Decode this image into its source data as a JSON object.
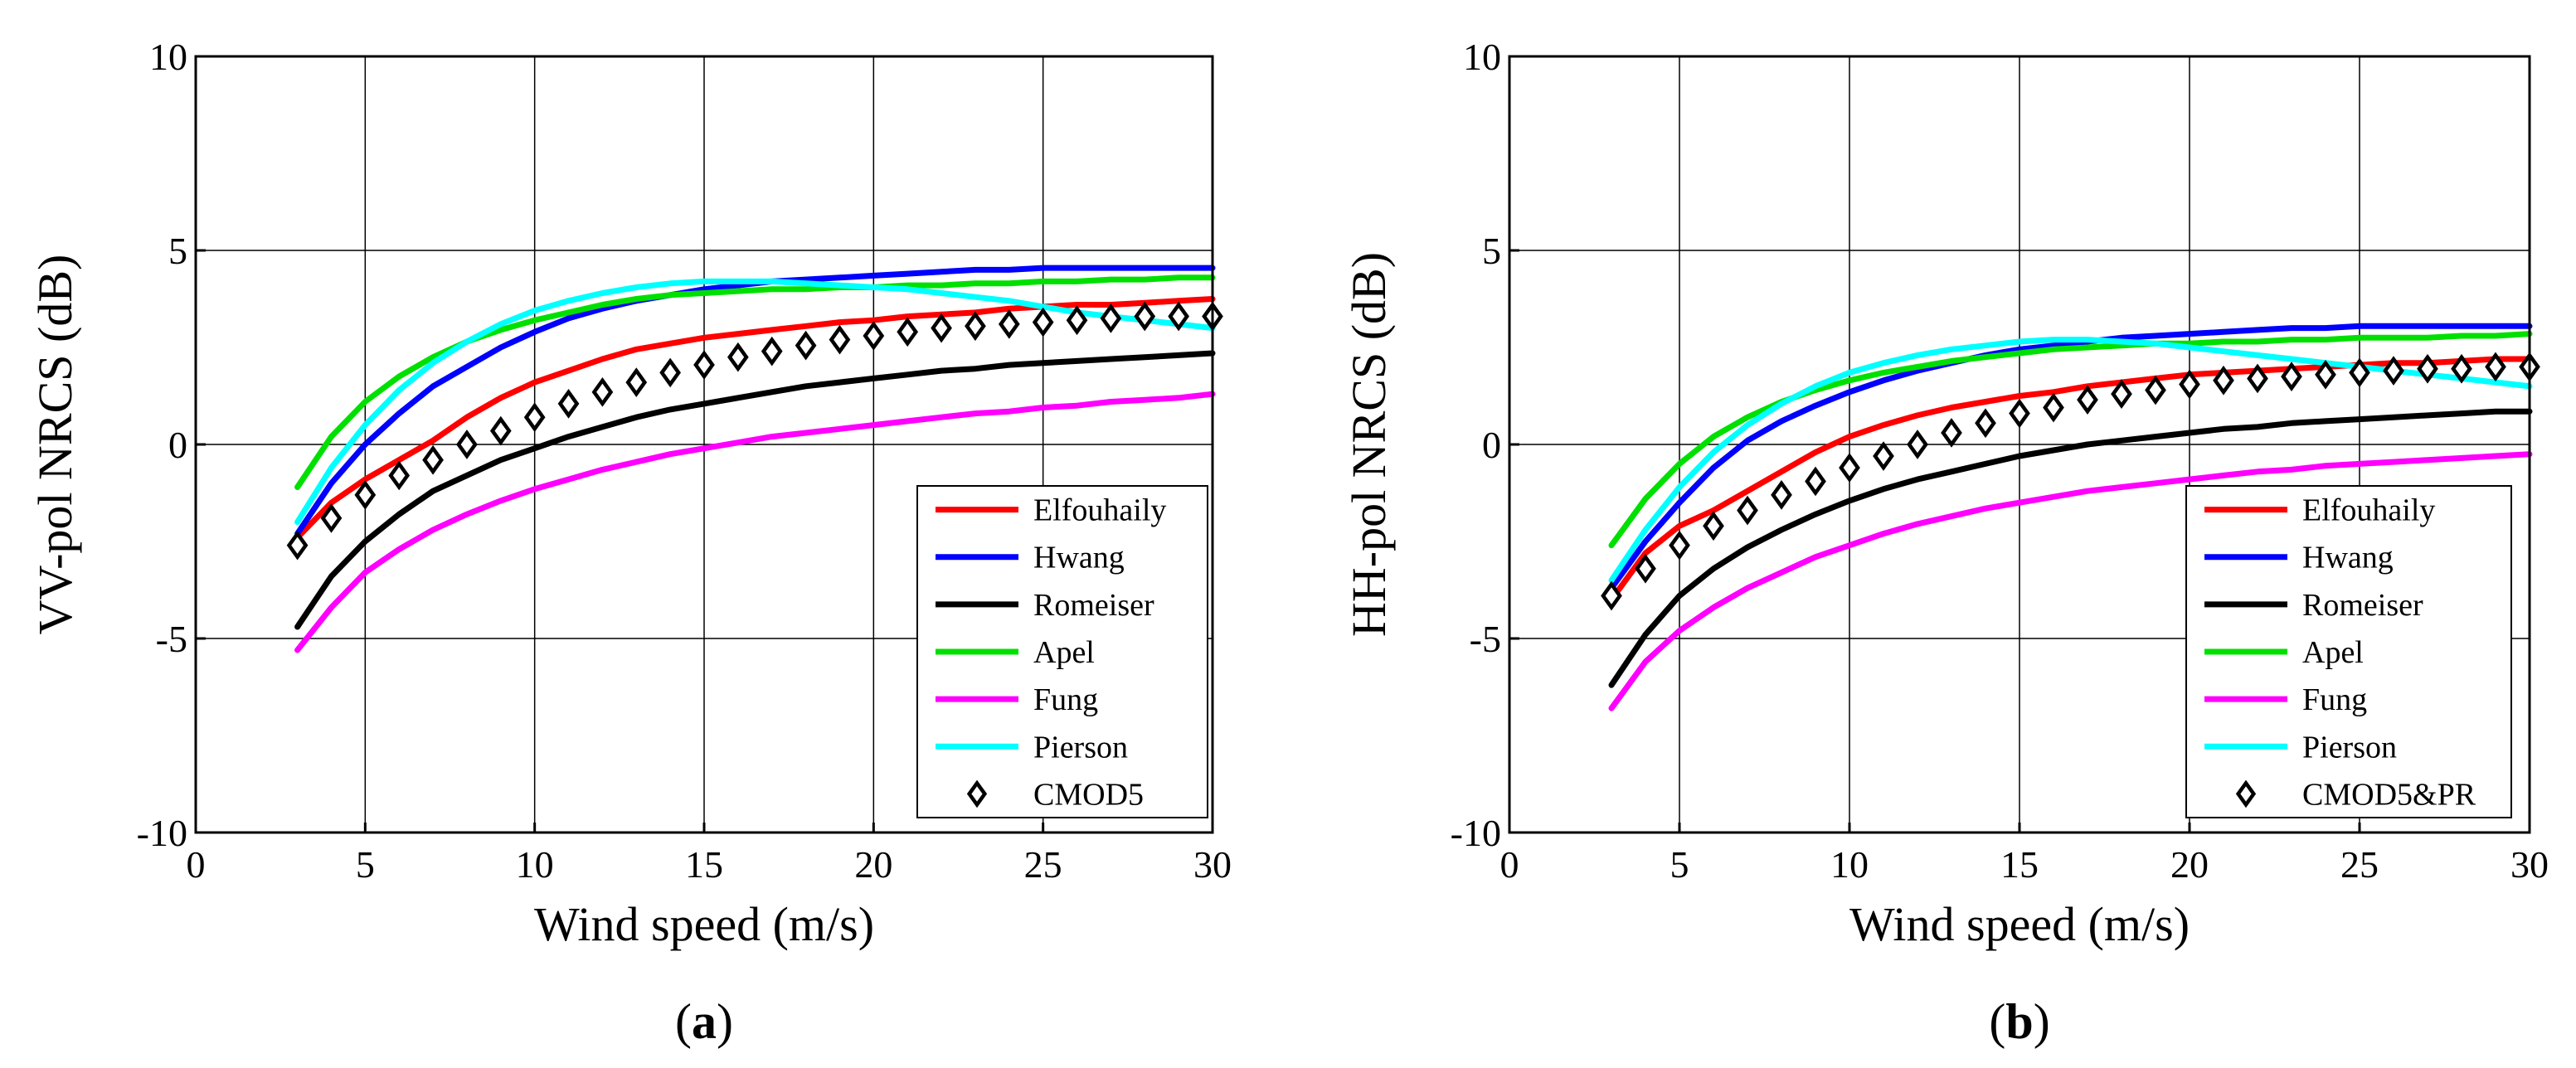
{
  "chart_data": [
    {
      "type": "line",
      "panel_label": "a",
      "xlabel": "Wind speed (m/s)",
      "ylabel": "VV-pol NRCS (dB)",
      "xlim": [
        0,
        30
      ],
      "ylim": [
        -10,
        10
      ],
      "xticks": [
        "0",
        "5",
        "10",
        "15",
        "20",
        "25",
        "30"
      ],
      "yticks": [
        "10",
        "5",
        "0",
        "-5",
        "-10"
      ],
      "grid": true,
      "legend_position": "bottom-right",
      "x": [
        3,
        4,
        5,
        6,
        7,
        8,
        9,
        10,
        11,
        12,
        13,
        14,
        15,
        16,
        17,
        18,
        19,
        20,
        21,
        22,
        23,
        24,
        25,
        26,
        27,
        28,
        29,
        30
      ],
      "series": [
        {
          "name": "Elfouhaily",
          "color": "#ff0000",
          "style": "line",
          "values": [
            -2.4,
            -1.5,
            -0.9,
            -0.4,
            0.1,
            0.7,
            1.2,
            1.6,
            1.9,
            2.2,
            2.45,
            2.6,
            2.75,
            2.85,
            2.95,
            3.05,
            3.15,
            3.2,
            3.3,
            3.35,
            3.4,
            3.5,
            3.55,
            3.6,
            3.6,
            3.65,
            3.7,
            3.75
          ]
        },
        {
          "name": "Hwang",
          "color": "#0000ff",
          "style": "line",
          "values": [
            -2.3,
            -1.0,
            0.0,
            0.8,
            1.5,
            2.0,
            2.5,
            2.9,
            3.25,
            3.5,
            3.7,
            3.85,
            4.0,
            4.1,
            4.2,
            4.25,
            4.3,
            4.35,
            4.4,
            4.45,
            4.5,
            4.5,
            4.55,
            4.55,
            4.55,
            4.55,
            4.55,
            4.55
          ]
        },
        {
          "name": "Romeiser",
          "color": "#000000",
          "style": "line",
          "values": [
            -4.7,
            -3.4,
            -2.5,
            -1.8,
            -1.2,
            -0.8,
            -0.4,
            -0.1,
            0.2,
            0.45,
            0.7,
            0.9,
            1.05,
            1.2,
            1.35,
            1.5,
            1.6,
            1.7,
            1.8,
            1.9,
            1.95,
            2.05,
            2.1,
            2.15,
            2.2,
            2.25,
            2.3,
            2.35
          ]
        },
        {
          "name": "Apel",
          "color": "#00e000",
          "style": "line",
          "values": [
            -1.1,
            0.2,
            1.1,
            1.75,
            2.25,
            2.65,
            2.95,
            3.2,
            3.4,
            3.6,
            3.75,
            3.85,
            3.9,
            3.95,
            4.0,
            4.0,
            4.05,
            4.05,
            4.1,
            4.1,
            4.15,
            4.15,
            4.2,
            4.2,
            4.25,
            4.25,
            4.3,
            4.3
          ]
        },
        {
          "name": "Fung",
          "color": "#ff00ff",
          "style": "line",
          "values": [
            -5.3,
            -4.2,
            -3.3,
            -2.7,
            -2.2,
            -1.8,
            -1.45,
            -1.15,
            -0.9,
            -0.65,
            -0.45,
            -0.25,
            -0.1,
            0.05,
            0.2,
            0.3,
            0.4,
            0.5,
            0.6,
            0.7,
            0.8,
            0.85,
            0.95,
            1.0,
            1.1,
            1.15,
            1.2,
            1.3
          ]
        },
        {
          "name": "Pierson",
          "color": "#00ffff",
          "style": "line",
          "values": [
            -2.0,
            -0.6,
            0.5,
            1.4,
            2.1,
            2.65,
            3.1,
            3.45,
            3.7,
            3.9,
            4.05,
            4.15,
            4.2,
            4.2,
            4.2,
            4.15,
            4.1,
            4.05,
            4.0,
            3.9,
            3.8,
            3.7,
            3.55,
            3.4,
            3.3,
            3.2,
            3.1,
            3.0
          ]
        },
        {
          "name": "CMOD5",
          "color": "#000000",
          "style": "marker",
          "values": [
            -2.6,
            -1.9,
            -1.3,
            -0.8,
            -0.4,
            0.0,
            0.35,
            0.7,
            1.05,
            1.35,
            1.6,
            1.85,
            2.05,
            2.25,
            2.4,
            2.55,
            2.7,
            2.8,
            2.9,
            3.0,
            3.05,
            3.1,
            3.15,
            3.2,
            3.25,
            3.3,
            3.3,
            3.3
          ]
        }
      ]
    },
    {
      "type": "line",
      "panel_label": "b",
      "xlabel": "Wind speed (m/s)",
      "ylabel": "HH-pol NRCS (dB)",
      "xlim": [
        0,
        30
      ],
      "ylim": [
        -10,
        10
      ],
      "xticks": [
        "0",
        "5",
        "10",
        "15",
        "20",
        "25",
        "30"
      ],
      "yticks": [
        "10",
        "5",
        "0",
        "-5",
        "-10"
      ],
      "grid": true,
      "legend_position": "bottom-right",
      "x": [
        3,
        4,
        5,
        6,
        7,
        8,
        9,
        10,
        11,
        12,
        13,
        14,
        15,
        16,
        17,
        18,
        19,
        20,
        21,
        22,
        23,
        24,
        25,
        26,
        27,
        28,
        29,
        30
      ],
      "series": [
        {
          "name": "Elfouhaily",
          "color": "#ff0000",
          "style": "line",
          "values": [
            -4.0,
            -2.8,
            -2.1,
            -1.7,
            -1.2,
            -0.7,
            -0.2,
            0.2,
            0.5,
            0.75,
            0.95,
            1.1,
            1.25,
            1.35,
            1.5,
            1.6,
            1.7,
            1.8,
            1.85,
            1.9,
            1.95,
            2.0,
            2.05,
            2.1,
            2.1,
            2.15,
            2.2,
            2.2
          ]
        },
        {
          "name": "Hwang",
          "color": "#0000ff",
          "style": "line",
          "values": [
            -3.7,
            -2.5,
            -1.5,
            -0.6,
            0.1,
            0.6,
            1.0,
            1.35,
            1.65,
            1.9,
            2.1,
            2.3,
            2.45,
            2.55,
            2.65,
            2.75,
            2.8,
            2.85,
            2.9,
            2.95,
            3.0,
            3.0,
            3.05,
            3.05,
            3.05,
            3.05,
            3.05,
            3.05
          ]
        },
        {
          "name": "Romeiser",
          "color": "#000000",
          "style": "line",
          "values": [
            -6.2,
            -4.9,
            -3.9,
            -3.2,
            -2.65,
            -2.2,
            -1.8,
            -1.45,
            -1.15,
            -0.9,
            -0.7,
            -0.5,
            -0.3,
            -0.15,
            0.0,
            0.1,
            0.2,
            0.3,
            0.4,
            0.45,
            0.55,
            0.6,
            0.65,
            0.7,
            0.75,
            0.8,
            0.85,
            0.85
          ]
        },
        {
          "name": "Apel",
          "color": "#00e000",
          "style": "line",
          "values": [
            -2.6,
            -1.4,
            -0.5,
            0.2,
            0.7,
            1.1,
            1.4,
            1.65,
            1.85,
            2.0,
            2.15,
            2.25,
            2.35,
            2.45,
            2.5,
            2.55,
            2.6,
            2.6,
            2.65,
            2.65,
            2.7,
            2.7,
            2.75,
            2.75,
            2.75,
            2.8,
            2.8,
            2.85
          ]
        },
        {
          "name": "Fung",
          "color": "#ff00ff",
          "style": "line",
          "values": [
            -6.8,
            -5.6,
            -4.8,
            -4.2,
            -3.7,
            -3.3,
            -2.9,
            -2.6,
            -2.3,
            -2.05,
            -1.85,
            -1.65,
            -1.5,
            -1.35,
            -1.2,
            -1.1,
            -1.0,
            -0.9,
            -0.8,
            -0.7,
            -0.65,
            -0.55,
            -0.5,
            -0.45,
            -0.4,
            -0.35,
            -0.3,
            -0.25
          ]
        },
        {
          "name": "Pierson",
          "color": "#00ffff",
          "style": "line",
          "values": [
            -3.5,
            -2.2,
            -1.1,
            -0.2,
            0.5,
            1.05,
            1.5,
            1.85,
            2.1,
            2.3,
            2.45,
            2.55,
            2.65,
            2.7,
            2.7,
            2.65,
            2.6,
            2.5,
            2.4,
            2.3,
            2.2,
            2.1,
            2.0,
            1.9,
            1.8,
            1.7,
            1.6,
            1.5
          ]
        },
        {
          "name": "CMOD5&PR",
          "color": "#000000",
          "style": "marker",
          "values": [
            -3.9,
            -3.2,
            -2.6,
            -2.1,
            -1.7,
            -1.3,
            -0.95,
            -0.6,
            -0.3,
            0.0,
            0.3,
            0.55,
            0.8,
            0.95,
            1.15,
            1.3,
            1.4,
            1.55,
            1.65,
            1.7,
            1.75,
            1.8,
            1.85,
            1.9,
            1.95,
            1.95,
            2.0,
            2.0
          ]
        }
      ]
    }
  ]
}
